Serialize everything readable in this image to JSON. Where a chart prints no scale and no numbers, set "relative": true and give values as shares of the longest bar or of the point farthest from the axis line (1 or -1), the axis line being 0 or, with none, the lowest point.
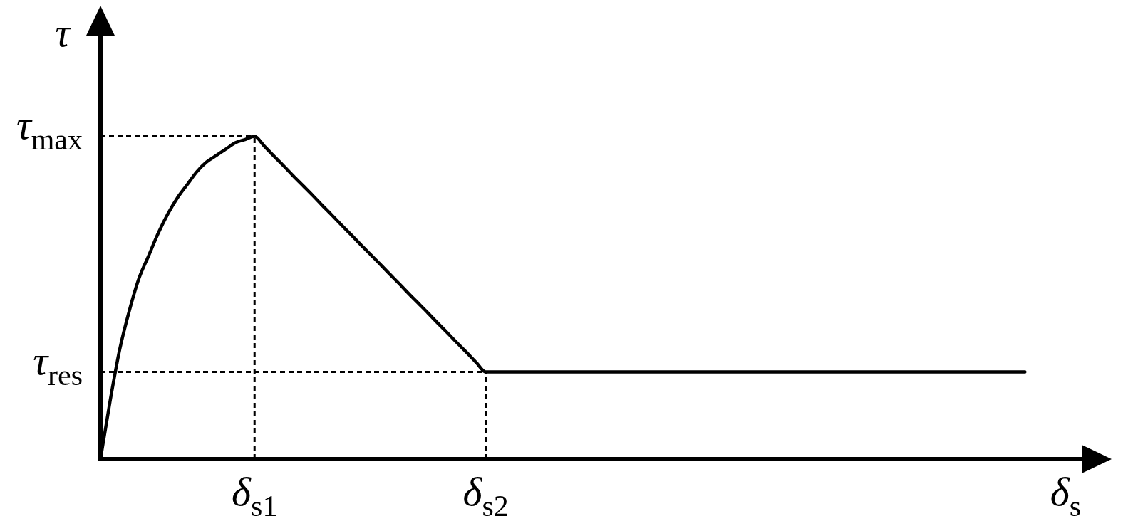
{
  "chart_data": {
    "type": "line",
    "relative": true,
    "xlabel": "δ$_{s}$",
    "ylabel": "τ",
    "categories": [
      null,
      null,
      null,
      null,
      null,
      null,
      null,
      null,
      null,
      null,
      null,
      null,
      null,
      null,
      null,
      null,
      "δ$_{s1}$",
      null,
      null,
      null,
      null,
      null,
      null,
      null,
      null,
      null,
      null,
      null,
      null,
      null,
      null,
      null,
      null,
      null,
      null,
      null,
      null,
      null,
      null,
      null,
      "δ$_{s2}$",
      null,
      null,
      null,
      null,
      null,
      null,
      null,
      null,
      null,
      null,
      null,
      null,
      null,
      null,
      null,
      null,
      null,
      null,
      null,
      null,
      null,
      null,
      null,
      null,
      null,
      null,
      null,
      null,
      null,
      null,
      null,
      null,
      null,
      null,
      null,
      null,
      null,
      null,
      null,
      null,
      null,
      null,
      null,
      null,
      null,
      null,
      null,
      null,
      null,
      null,
      null,
      null,
      null,
      null,
      null,
      null,
      null,
      null,
      null,
      null,
      null,
      null,
      null,
      null,
      null
    ],
    "series": [
      {
        "color": "#000000",
        "line_style": "solid",
        "values": [
          0,
          0.18,
          0.34,
          0.46,
          0.56,
          0.63,
          0.7,
          0.76,
          0.81,
          0.85,
          0.89,
          0.92,
          0.94,
          0.96,
          0.98,
          0.99,
          1,
          0.97,
          0.939,
          0.909,
          0.878,
          0.848,
          0.818,
          0.787,
          0.757,
          0.726,
          0.696,
          0.665,
          0.635,
          0.605,
          0.574,
          0.544,
          0.513,
          0.483,
          0.453,
          0.422,
          0.392,
          0.361,
          0.331,
          0.3,
          0.27,
          0.27,
          0.27,
          0.27,
          0.27,
          0.27,
          0.27,
          0.27,
          0.27,
          0.27,
          0.27,
          0.27,
          0.27,
          0.27,
          0.27,
          0.27,
          0.27,
          0.27,
          0.27,
          0.27,
          0.27,
          0.27,
          0.27,
          0.27,
          0.27,
          0.27,
          0.27,
          0.27,
          0.27,
          0.27,
          0.27,
          0.27,
          0.27,
          0.27,
          0.27,
          0.27,
          0.27,
          0.27,
          0.27,
          0.27,
          0.27,
          0.27,
          0.27,
          0.27,
          0.27,
          0.27,
          0.27,
          0.27,
          0.27,
          0.27,
          0.27,
          0.27,
          0.27,
          0.27,
          0.27,
          0.27,
          0.27,
          null,
          null,
          null,
          null,
          null,
          null,
          null,
          null,
          null
        ]
      }
    ],
    "ref_lines": [
      {
        "axis": "y",
        "value": 1,
        "label": "τ$_{max}$",
        "color": "#000000",
        "line_style": "dashed"
      },
      {
        "axis": "y",
        "value": 0.27,
        "label": "τ$_{res}$",
        "color": "#000000",
        "line_style": "dashed"
      },
      {
        "axis": "x",
        "value": "δ$_{s1}$",
        "color": "#000000",
        "line_style": "dashed"
      },
      {
        "axis": "x",
        "value": "δ$_{s2}$",
        "color": "#000000",
        "line_style": "dashed"
      }
    ]
  }
}
